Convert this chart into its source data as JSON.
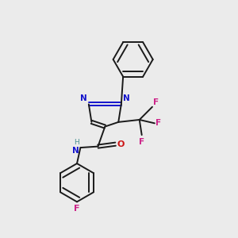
{
  "background_color": "#ebebeb",
  "bond_color": "#1a1a1a",
  "N_color": "#1414cc",
  "O_color": "#cc1414",
  "F_color": "#cc2288",
  "H_color": "#4a9090",
  "figsize": [
    3.0,
    3.0
  ],
  "dpi": 100,
  "xlim": [
    0,
    10
  ],
  "ylim": [
    0,
    10
  ]
}
